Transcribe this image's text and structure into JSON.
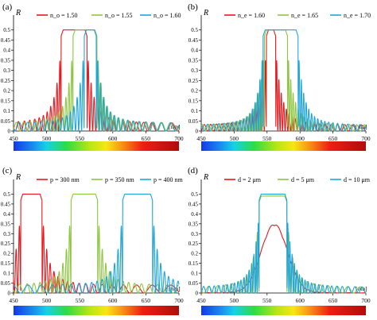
{
  "colors": {
    "red": "#e8181e",
    "green": "#8cc63e",
    "blue": "#1fa5dd"
  },
  "chart_data": [
    {
      "type": "line",
      "panel_label": "(a)",
      "ylabel": "R",
      "xunit": "[nm]",
      "xlim": [
        450,
        700
      ],
      "ylim": [
        0,
        0.55
      ],
      "xticks": [
        450,
        500,
        550,
        600,
        650,
        700
      ],
      "yticks": [
        0,
        0.05,
        0.1,
        0.15,
        0.2,
        0.25,
        0.3,
        0.35,
        0.4,
        0.45,
        0.5
      ],
      "ytick_labels": [
        "0",
        "0.05",
        "0.1",
        "0.15",
        "0.2",
        "0.25",
        "0.3",
        "0.35",
        "0.4",
        "0.45",
        "0.5"
      ],
      "legend_position": "top",
      "series": [
        {
          "name": "n_o = 1.50",
          "color": "red",
          "band": [
            522,
            561
          ],
          "peak": 0.5,
          "osc": 4.0,
          "ripple": 0.04
        },
        {
          "name": "n_o = 1.55",
          "color": "green",
          "band": [
            540,
            576
          ],
          "peak": 0.5,
          "osc": 4.0,
          "ripple": 0.04
        },
        {
          "name": "n_o = 1.60",
          "color": "blue",
          "band": [
            557,
            575
          ],
          "peak": 0.5,
          "osc": 4.0,
          "ripple": 0.04
        }
      ]
    },
    {
      "type": "line",
      "panel_label": "(b)",
      "ylabel": "R",
      "xunit": "[nm]",
      "xlim": [
        450,
        700
      ],
      "ylim": [
        0,
        0.55
      ],
      "xticks": [
        450,
        500,
        550,
        600,
        650,
        700
      ],
      "yticks": [
        0,
        0.05,
        0.1,
        0.15,
        0.2,
        0.25,
        0.3,
        0.35,
        0.4,
        0.45,
        0.5
      ],
      "ytick_labels": [
        "0",
        "0.05",
        "0.1",
        "0.15",
        "0.2",
        "0.25",
        "0.3",
        "0.35",
        "0.4",
        "0.45",
        "0.5"
      ],
      "legend_position": "top",
      "series": [
        {
          "name": "n_e = 1.60",
          "color": "red",
          "band": [
            549,
            563
          ],
          "peak": 0.5,
          "osc": 3.2,
          "ripple": 0.03
        },
        {
          "name": "n_e = 1.65",
          "color": "green",
          "band": [
            546,
            581
          ],
          "peak": 0.5,
          "osc": 3.2,
          "ripple": 0.03
        },
        {
          "name": "n_e = 1.70",
          "color": "blue",
          "band": [
            544,
            597
          ],
          "peak": 0.5,
          "osc": 3.2,
          "ripple": 0.03
        }
      ]
    },
    {
      "type": "line",
      "panel_label": "(c)",
      "ylabel": "R",
      "xunit": "[nm]",
      "xlim": [
        450,
        700
      ],
      "ylim": [
        0,
        0.55
      ],
      "xticks": [
        450,
        500,
        550,
        600,
        650,
        700
      ],
      "yticks": [
        0,
        0.05,
        0.1,
        0.15,
        0.2,
        0.25,
        0.3,
        0.35,
        0.4,
        0.45,
        0.5
      ],
      "ytick_labels": [
        "0",
        "0.05",
        "0.1",
        "0.15",
        "0.2",
        "0.25",
        "0.3",
        "0.35",
        "0.4",
        "0.45",
        "0.5"
      ],
      "legend_position": "top",
      "series": [
        {
          "name": "p = 300 nm",
          "color": "red",
          "band": [
            461,
            493
          ],
          "peak": 0.5,
          "osc": 4.5,
          "ripple": 0.04
        },
        {
          "name": "p = 350 nm",
          "color": "green",
          "band": [
            537,
            577
          ],
          "peak": 0.5,
          "osc": 4.5,
          "ripple": 0.04
        },
        {
          "name": "p = 400 nm",
          "color": "blue",
          "band": [
            615,
            660
          ],
          "peak": 0.5,
          "osc": 4.5,
          "ripple": 0.04
        }
      ]
    },
    {
      "type": "line",
      "panel_label": "(d)",
      "ylabel": "R",
      "xunit": "[nm]",
      "xlim": [
        450,
        700
      ],
      "ylim": [
        0,
        0.55
      ],
      "xticks": [
        450,
        500,
        550,
        600,
        650,
        700
      ],
      "yticks": [
        0,
        0.05,
        0.1,
        0.15,
        0.2,
        0.25,
        0.3,
        0.35,
        0.4,
        0.45,
        0.5
      ],
      "ytick_labels": [
        "0",
        "0.05",
        "0.1",
        "0.15",
        "0.2",
        "0.25",
        "0.3",
        "0.35",
        "0.4",
        "0.45",
        "0.5"
      ],
      "legend_position": "top",
      "series": [
        {
          "name": "d = 2 μm",
          "color": "red",
          "band": [
            540,
            582
          ],
          "peak": 0.34,
          "shape": "bell",
          "osc": 12,
          "ripple": 0.01
        },
        {
          "name": "d = 5 μm",
          "color": "green",
          "band": [
            538,
            580
          ],
          "peak": 0.49,
          "osc": 5.5,
          "ripple": 0.03
        },
        {
          "name": "d = 10 μm",
          "color": "blue",
          "band": [
            538,
            580
          ],
          "peak": 0.5,
          "osc": 3.0,
          "ripple": 0.03
        }
      ]
    }
  ]
}
